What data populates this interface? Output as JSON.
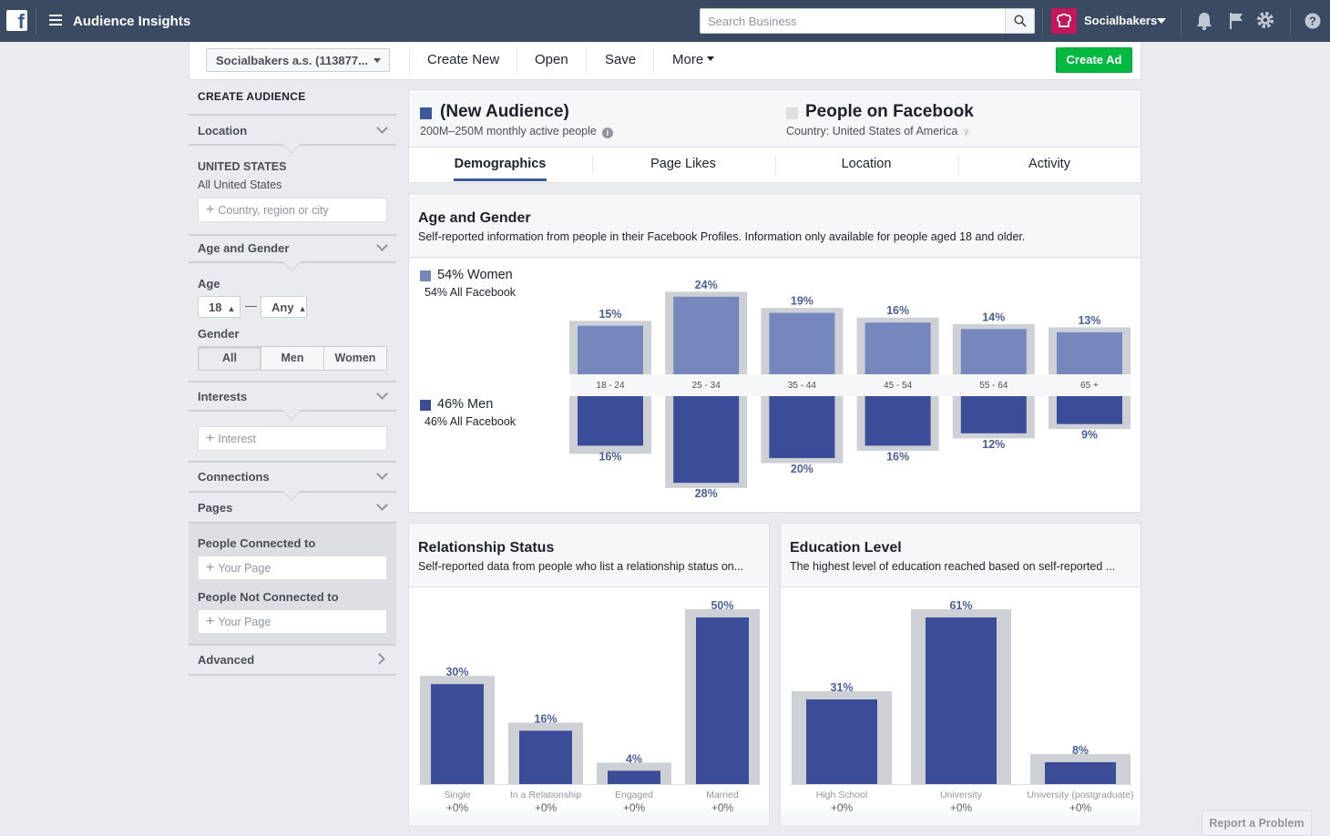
{
  "topbar": {
    "logo": "f",
    "app_title": "Audience Insights",
    "search_placeholder": "Search Business",
    "brand_name": "Socialbakers",
    "icons": [
      "facebook-logo-icon",
      "menu-icon",
      "search-icon",
      "bell-icon",
      "flag-icon",
      "gear-icon",
      "help-icon"
    ]
  },
  "toolbar": {
    "account": "Socialbakers a.s. (113877...",
    "create_new": "Create New",
    "open": "Open",
    "save": "Save",
    "more": "More",
    "create_ad": "Create Ad"
  },
  "sidebar": {
    "title": "CREATE AUDIENCE",
    "location": {
      "header": "Location",
      "country": "UNITED STATES",
      "country_sub": "All United States",
      "placeholder": "Country, region or city"
    },
    "age_gender": {
      "header": "Age and Gender",
      "age_label": "Age",
      "age_from": "18",
      "age_to": "Any",
      "dash": "—",
      "gender_label": "Gender",
      "genders": [
        "All",
        "Men",
        "Women"
      ],
      "selected_gender": "All"
    },
    "interests": {
      "header": "Interests",
      "placeholder": "Interest"
    },
    "connections": {
      "header": "Connections"
    },
    "pages": {
      "header": "Pages",
      "connected_label": "People Connected to",
      "connected_placeholder": "Your Page",
      "not_connected_label": "People Not Connected to",
      "not_connected_placeholder": "Your Page"
    },
    "advanced": {
      "header": "Advanced"
    }
  },
  "audience": {
    "name": "(New Audience)",
    "sub": "200M–250M monthly active people",
    "compare_name": "People on Facebook",
    "compare_sub": "Country: United States of America",
    "color": "#3b5998",
    "compare_color": "#dddfe2"
  },
  "tabs": [
    {
      "label": "Demographics",
      "active": true
    },
    {
      "label": "Page Likes",
      "active": false
    },
    {
      "label": "Location",
      "active": false
    },
    {
      "label": "Activity",
      "active": false
    }
  ],
  "colors": {
    "women": "#7587bd",
    "men": "#3b4d98",
    "benchmark": "#cdd0d5",
    "label": "#4a5f9c",
    "green": "#00b940"
  },
  "chart_data": [
    {
      "type": "bar",
      "title": "Age and Gender",
      "subtitle": "Self-reported information from people in their Facebook Profiles. Information only available for people aged 18 and older.",
      "categories": [
        "18 - 24",
        "25 - 34",
        "35 - 44",
        "45 - 54",
        "55 - 64",
        "65 +"
      ],
      "series": [
        {
          "name": "54% Women",
          "note": "54% All Facebook",
          "values": [
            15,
            24,
            19,
            16,
            14,
            13
          ]
        },
        {
          "name": "46% Men",
          "note": "46% All Facebook",
          "values": [
            16,
            28,
            20,
            16,
            12,
            9
          ]
        }
      ],
      "value_suffix": "%"
    },
    {
      "type": "bar",
      "title": "Relationship Status",
      "subtitle": "Self-reported data from people who list a relationship status on...",
      "categories": [
        "Single",
        "In a Relationship",
        "Engaged",
        "Married"
      ],
      "values": [
        30,
        16,
        4,
        50
      ],
      "comparison": [
        "+0%",
        "+0%",
        "+0%",
        "+0%"
      ],
      "value_suffix": "%"
    },
    {
      "type": "bar",
      "title": "Education Level",
      "subtitle": "The highest level of education reached based on self-reported ...",
      "categories": [
        "High School",
        "University",
        "University (postgraduate)"
      ],
      "values": [
        31,
        61,
        8
      ],
      "comparison": [
        "+0%",
        "+0%",
        "+0%"
      ],
      "value_suffix": "%"
    }
  ],
  "footer": {
    "report": "Report a Problem"
  }
}
